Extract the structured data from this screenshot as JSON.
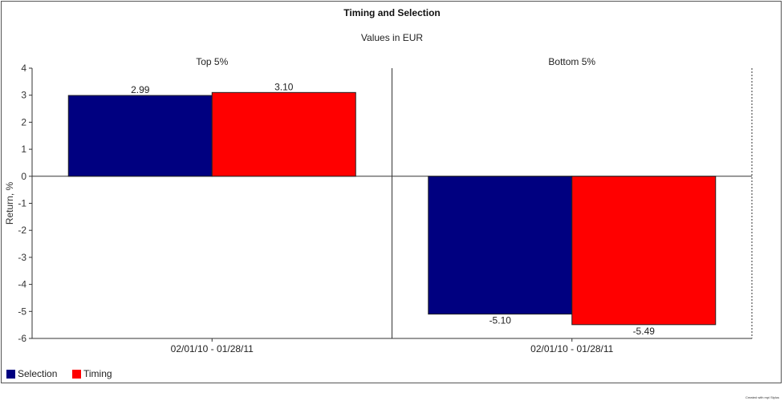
{
  "chart_data": {
    "type": "bar",
    "title": "Timing and Selection",
    "subtitle": "Values in EUR",
    "ylabel": "Return, %",
    "ylim": [
      -6,
      4
    ],
    "yticks": [
      "4",
      "3",
      "2",
      "1",
      "0",
      "-1",
      "-2",
      "-3",
      "-4",
      "-5",
      "-6"
    ],
    "grid": false,
    "legend_position": "bottom-left",
    "panels": [
      {
        "title": "Top 5%",
        "category": "02/01/10 - 01/28/11",
        "values": [
          2.99,
          3.1
        ],
        "labels": [
          "2.99",
          "3.10"
        ]
      },
      {
        "title": "Bottom 5%",
        "category": "02/01/10 - 01/28/11",
        "values": [
          -5.1,
          -5.49
        ],
        "labels": [
          "-5.10",
          "-5.49"
        ]
      }
    ],
    "series": [
      {
        "name": "Selection",
        "color": "#000080"
      },
      {
        "name": "Timing",
        "color": "#ff0000"
      }
    ]
  },
  "credit": "Created with mpi Stylus"
}
